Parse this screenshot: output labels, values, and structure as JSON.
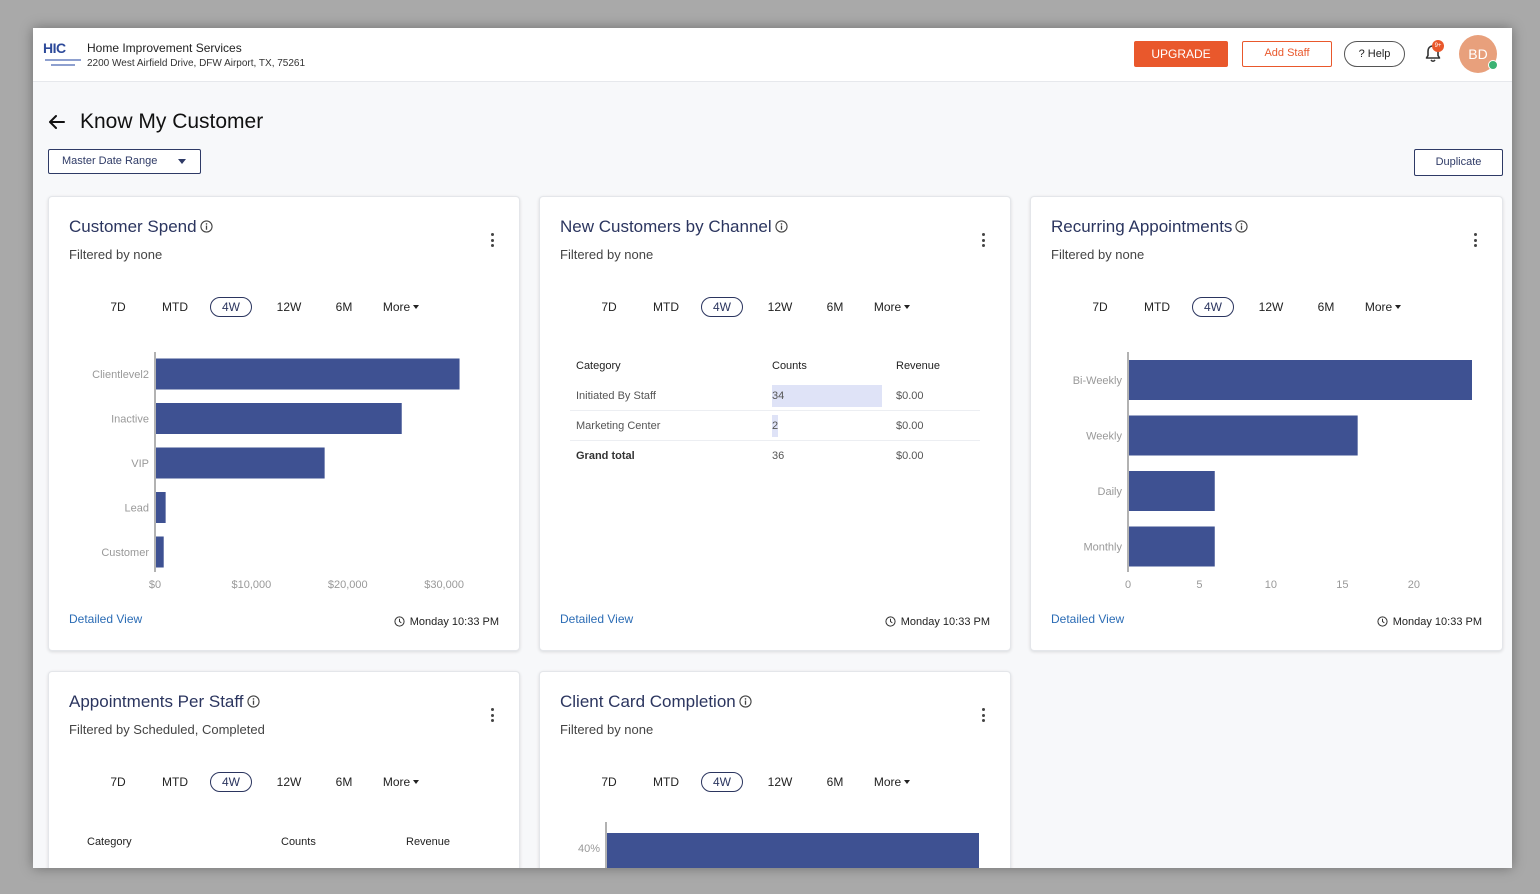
{
  "header": {
    "logo_text": "HIC",
    "business_name": "Home Improvement Services",
    "business_address": "2200 West Airfield Drive, DFW Airport, TX, 75261",
    "upgrade_label": "UPGRADE",
    "add_staff_label": "Add Staff",
    "help_label": "? Help",
    "notification_badge": "9+",
    "avatar_initials": "BD",
    "bell_icon": "bell-icon"
  },
  "page": {
    "title": "Know My Customer",
    "date_range_label": "Master Date Range",
    "duplicate_label": "Duplicate"
  },
  "colors": {
    "bar": "#3e5192",
    "accent": "#e9582c",
    "link": "#2b6cb5",
    "title": "#2b355f"
  },
  "ranges": [
    "7D",
    "MTD",
    "4W",
    "12W",
    "6M",
    "More"
  ],
  "active_range": "4W",
  "cards": {
    "customer_spend": {
      "title": "Customer Spend",
      "filter": "Filtered by none",
      "detailed_view": "Detailed View",
      "updated": "Monday 10:33 PM",
      "chart_data": {
        "type": "bar",
        "orientation": "horizontal",
        "categories": [
          "Clientlevel2",
          "Inactive",
          "VIP",
          "Lead",
          "Customer"
        ],
        "values": [
          31500,
          25500,
          17500,
          1000,
          800
        ],
        "xlim": [
          0,
          33000
        ],
        "xticks": [
          0,
          10000,
          20000,
          30000
        ],
        "xtick_labels": [
          "$0",
          "$10,000",
          "$20,000",
          "$30,000"
        ]
      }
    },
    "new_customers": {
      "title": "New Customers by Channel",
      "filter": "Filtered by none",
      "detailed_view": "Detailed View",
      "updated": "Monday 10:33 PM",
      "table": {
        "headers": [
          "Category",
          "Counts",
          "Revenue"
        ],
        "rows": [
          {
            "category": "Initiated By Staff",
            "counts": "34",
            "revenue": "$0.00",
            "fraction": 1.0
          },
          {
            "category": "Marketing Center",
            "counts": "2",
            "revenue": "$0.00",
            "fraction": 0.059
          }
        ],
        "total": {
          "category": "Grand total",
          "counts": "36",
          "revenue": "$0.00"
        }
      }
    },
    "recurring": {
      "title": "Recurring Appointments",
      "filter": "Filtered by none",
      "detailed_view": "Detailed View",
      "updated": "Monday 10:33 PM",
      "chart_data": {
        "type": "bar",
        "orientation": "horizontal",
        "categories": [
          "Bi-Weekly",
          "Weekly",
          "Daily",
          "Monthly"
        ],
        "values": [
          24,
          16,
          6,
          6
        ],
        "xlim": [
          0,
          24
        ],
        "xticks": [
          0,
          5,
          10,
          15,
          20
        ],
        "xtick_labels": [
          "0",
          "5",
          "10",
          "15",
          "20"
        ]
      }
    },
    "appointments_staff": {
      "title": "Appointments Per Staff",
      "filter": "Filtered by Scheduled, Completed",
      "table": {
        "headers": [
          "Category",
          "Counts",
          "Revenue"
        ]
      }
    },
    "client_card": {
      "title": "Client Card Completion",
      "filter": "Filtered by none",
      "chart_data": {
        "type": "bar",
        "orientation": "horizontal",
        "ytick_labels": [
          "40%"
        ],
        "values": [
          1.0
        ]
      }
    }
  }
}
